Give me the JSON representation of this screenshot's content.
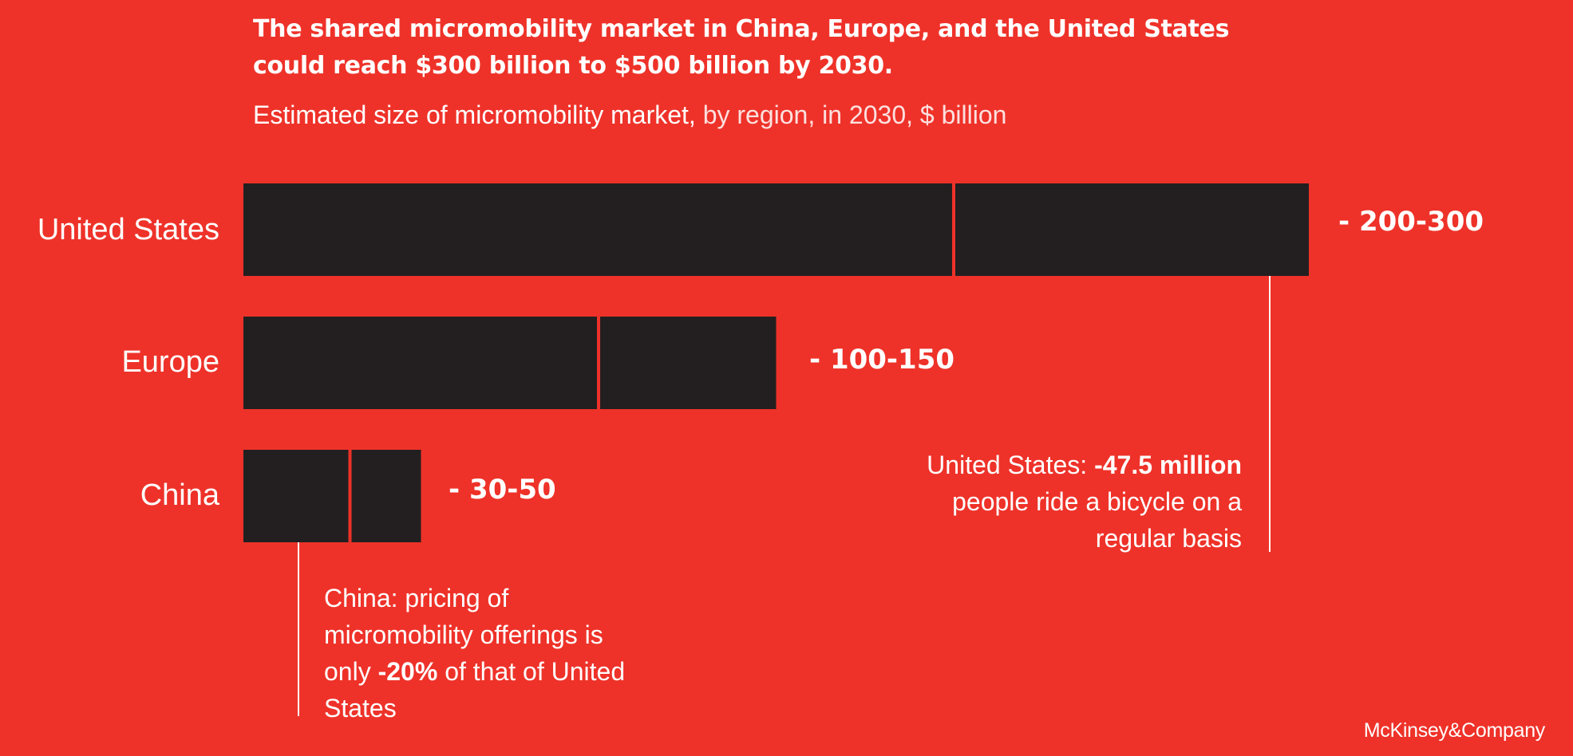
{
  "title_line1": "The shared micromobility market in China, Europe, and the United States",
  "title_line2": "could reach $300 billion to $500 billion by 2030.",
  "subtitle_main": "Estimated size of micromobility market,",
  "subtitle_rest": " by region, in 2030, $ billion",
  "colors": {
    "background": "#ee3229",
    "bar": "#231f20",
    "text": "#ffffff"
  },
  "chart_data": {
    "type": "bar",
    "orientation": "horizontal",
    "unit": "$ billion",
    "categories": [
      "United States",
      "Europe",
      "China"
    ],
    "ranges": [
      {
        "category": "United States",
        "low": 200,
        "high": 300,
        "label": "- 200-300"
      },
      {
        "category": "Europe",
        "low": 100,
        "high": 150,
        "label": "- 100-150"
      },
      {
        "category": "China",
        "low": 30,
        "high": 50,
        "label": "- 30-50"
      }
    ],
    "xlim": [
      0,
      300
    ],
    "grid": false,
    "legend": "none"
  },
  "annotations": {
    "us": {
      "prefix": "United States: ",
      "bold": "-47.5 million",
      "rest": " people ride a bicycle on a regular basis"
    },
    "china": {
      "prefix": "China: pricing of micromobility offerings is only ",
      "bold": "-20%",
      "rest": " of that of United States"
    }
  },
  "brand": "McKinsey&Company"
}
